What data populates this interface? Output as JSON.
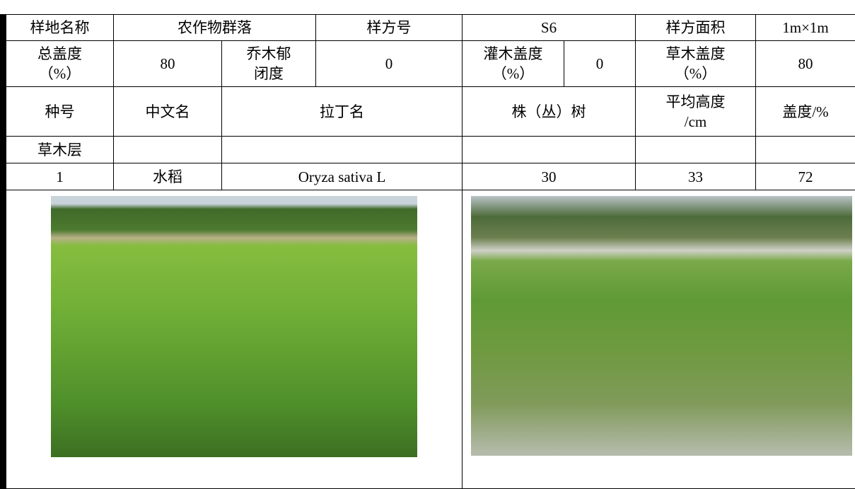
{
  "table": {
    "rows": [
      [
        "样地名称",
        "农作物群落",
        "样方号",
        "S6",
        "样方面积",
        "1m×1m"
      ],
      [
        "总盖度\n（%）",
        "80",
        "乔木郁\n闭度",
        "0",
        "灌木盖度\n（%）",
        "0",
        "草木盖度\n（%）",
        "80"
      ],
      [
        "种号",
        "中文名",
        "拉丁名",
        "株（丛）树",
        "平均高度\n/cm",
        "盖度/%"
      ],
      [
        "草木层"
      ],
      [
        "1",
        "水稻",
        "Oryza sativa L",
        "30",
        "33",
        "72"
      ]
    ]
  }
}
